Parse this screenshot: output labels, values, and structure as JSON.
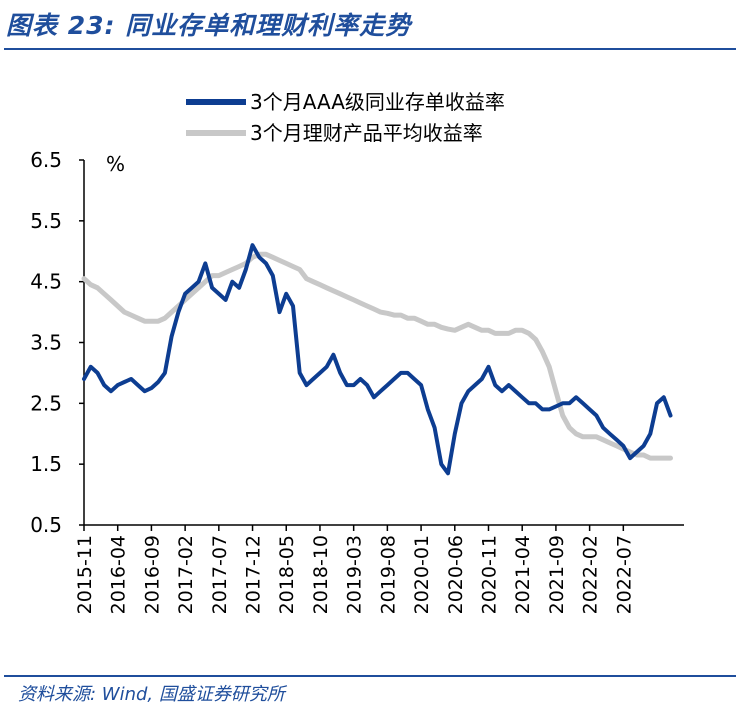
{
  "header": {
    "title": "图表 23: 同业存单和理财利率走势"
  },
  "footer": {
    "source": "资料来源: Wind, 国盛证券研究所"
  },
  "colors": {
    "accent": "#1f4e9c",
    "series_blue": "#0d3d91",
    "series_gray": "#c8c8c8"
  },
  "chart_data": {
    "type": "line",
    "unit": "%",
    "ylim": [
      0.5,
      6.5
    ],
    "yticks": [
      "6.5",
      "5.5",
      "4.5",
      "3.5",
      "2.5",
      "1.5",
      "0.5"
    ],
    "ytick_values": [
      6.5,
      5.5,
      4.5,
      3.5,
      2.5,
      1.5,
      0.5
    ],
    "xlim": [
      "2015-11",
      "2023-04"
    ],
    "xticks": [
      "2015-11",
      "2016-04",
      "2016-09",
      "2017-02",
      "2017-07",
      "2017-12",
      "2018-05",
      "2018-10",
      "2019-03",
      "2019-08",
      "2020-01",
      "2020-06",
      "2020-11",
      "2021-04",
      "2021-09",
      "2022-02",
      "2022-07"
    ],
    "legend_position": "top",
    "grid": false,
    "series": [
      {
        "name": "3个月AAA级同业存单收益率",
        "color": "#0d3d91",
        "points": [
          [
            "2015-11",
            2.9
          ],
          [
            "2015-12",
            3.1
          ],
          [
            "2016-01",
            3.0
          ],
          [
            "2016-02",
            2.8
          ],
          [
            "2016-03",
            2.7
          ],
          [
            "2016-04",
            2.8
          ],
          [
            "2016-05",
            2.85
          ],
          [
            "2016-06",
            2.9
          ],
          [
            "2016-07",
            2.8
          ],
          [
            "2016-08",
            2.7
          ],
          [
            "2016-09",
            2.75
          ],
          [
            "2016-10",
            2.85
          ],
          [
            "2016-11",
            3.0
          ],
          [
            "2016-12",
            3.6
          ],
          [
            "2017-01",
            4.0
          ],
          [
            "2017-02",
            4.3
          ],
          [
            "2017-03",
            4.4
          ],
          [
            "2017-04",
            4.5
          ],
          [
            "2017-05",
            4.8
          ],
          [
            "2017-06",
            4.4
          ],
          [
            "2017-07",
            4.3
          ],
          [
            "2017-08",
            4.2
          ],
          [
            "2017-09",
            4.5
          ],
          [
            "2017-10",
            4.4
          ],
          [
            "2017-11",
            4.7
          ],
          [
            "2017-12",
            5.1
          ],
          [
            "2018-01",
            4.9
          ],
          [
            "2018-02",
            4.8
          ],
          [
            "2018-03",
            4.6
          ],
          [
            "2018-04",
            4.0
          ],
          [
            "2018-05",
            4.3
          ],
          [
            "2018-06",
            4.1
          ],
          [
            "2018-07",
            3.0
          ],
          [
            "2018-08",
            2.8
          ],
          [
            "2018-09",
            2.9
          ],
          [
            "2018-10",
            3.0
          ],
          [
            "2018-11",
            3.1
          ],
          [
            "2018-12",
            3.3
          ],
          [
            "2019-01",
            3.0
          ],
          [
            "2019-02",
            2.8
          ],
          [
            "2019-03",
            2.8
          ],
          [
            "2019-04",
            2.9
          ],
          [
            "2019-05",
            2.8
          ],
          [
            "2019-06",
            2.6
          ],
          [
            "2019-07",
            2.7
          ],
          [
            "2019-08",
            2.8
          ],
          [
            "2019-09",
            2.9
          ],
          [
            "2019-10",
            3.0
          ],
          [
            "2019-11",
            3.0
          ],
          [
            "2019-12",
            2.9
          ],
          [
            "2020-01",
            2.8
          ],
          [
            "2020-02",
            2.4
          ],
          [
            "2020-03",
            2.1
          ],
          [
            "2020-04",
            1.5
          ],
          [
            "2020-05",
            1.35
          ],
          [
            "2020-06",
            2.0
          ],
          [
            "2020-07",
            2.5
          ],
          [
            "2020-08",
            2.7
          ],
          [
            "2020-09",
            2.8
          ],
          [
            "2020-10",
            2.9
          ],
          [
            "2020-11",
            3.1
          ],
          [
            "2020-12",
            2.8
          ],
          [
            "2021-01",
            2.7
          ],
          [
            "2021-02",
            2.8
          ],
          [
            "2021-03",
            2.7
          ],
          [
            "2021-04",
            2.6
          ],
          [
            "2021-05",
            2.5
          ],
          [
            "2021-06",
            2.5
          ],
          [
            "2021-07",
            2.4
          ],
          [
            "2021-08",
            2.4
          ],
          [
            "2021-09",
            2.45
          ],
          [
            "2021-10",
            2.5
          ],
          [
            "2021-11",
            2.5
          ],
          [
            "2021-12",
            2.6
          ],
          [
            "2022-01",
            2.5
          ],
          [
            "2022-02",
            2.4
          ],
          [
            "2022-03",
            2.3
          ],
          [
            "2022-04",
            2.1
          ],
          [
            "2022-05",
            2.0
          ],
          [
            "2022-06",
            1.9
          ],
          [
            "2022-07",
            1.8
          ],
          [
            "2022-08",
            1.6
          ],
          [
            "2022-09",
            1.7
          ],
          [
            "2022-10",
            1.8
          ],
          [
            "2022-11",
            2.0
          ],
          [
            "2022-12",
            2.5
          ],
          [
            "2023-01",
            2.6
          ],
          [
            "2023-02",
            2.3
          ]
        ]
      },
      {
        "name": "3个月理财产品平均收益率",
        "color": "#c8c8c8",
        "points": [
          [
            "2015-11",
            4.55
          ],
          [
            "2015-12",
            4.45
          ],
          [
            "2016-01",
            4.4
          ],
          [
            "2016-02",
            4.3
          ],
          [
            "2016-03",
            4.2
          ],
          [
            "2016-04",
            4.1
          ],
          [
            "2016-05",
            4.0
          ],
          [
            "2016-06",
            3.95
          ],
          [
            "2016-07",
            3.9
          ],
          [
            "2016-08",
            3.85
          ],
          [
            "2016-09",
            3.85
          ],
          [
            "2016-10",
            3.85
          ],
          [
            "2016-11",
            3.9
          ],
          [
            "2016-12",
            4.0
          ],
          [
            "2017-01",
            4.1
          ],
          [
            "2017-02",
            4.2
          ],
          [
            "2017-03",
            4.3
          ],
          [
            "2017-04",
            4.4
          ],
          [
            "2017-05",
            4.5
          ],
          [
            "2017-06",
            4.6
          ],
          [
            "2017-07",
            4.6
          ],
          [
            "2017-08",
            4.65
          ],
          [
            "2017-09",
            4.7
          ],
          [
            "2017-10",
            4.75
          ],
          [
            "2017-11",
            4.8
          ],
          [
            "2017-12",
            4.9
          ],
          [
            "2018-01",
            4.95
          ],
          [
            "2018-02",
            4.95
          ],
          [
            "2018-03",
            4.9
          ],
          [
            "2018-04",
            4.85
          ],
          [
            "2018-05",
            4.8
          ],
          [
            "2018-06",
            4.75
          ],
          [
            "2018-07",
            4.7
          ],
          [
            "2018-08",
            4.55
          ],
          [
            "2018-09",
            4.5
          ],
          [
            "2018-10",
            4.45
          ],
          [
            "2018-11",
            4.4
          ],
          [
            "2018-12",
            4.35
          ],
          [
            "2019-01",
            4.3
          ],
          [
            "2019-02",
            4.25
          ],
          [
            "2019-03",
            4.2
          ],
          [
            "2019-04",
            4.15
          ],
          [
            "2019-05",
            4.1
          ],
          [
            "2019-06",
            4.05
          ],
          [
            "2019-07",
            4.0
          ],
          [
            "2019-08",
            3.98
          ],
          [
            "2019-09",
            3.95
          ],
          [
            "2019-10",
            3.95
          ],
          [
            "2019-11",
            3.9
          ],
          [
            "2019-12",
            3.9
          ],
          [
            "2020-01",
            3.85
          ],
          [
            "2020-02",
            3.8
          ],
          [
            "2020-03",
            3.8
          ],
          [
            "2020-04",
            3.75
          ],
          [
            "2020-05",
            3.72
          ],
          [
            "2020-06",
            3.7
          ],
          [
            "2020-07",
            3.75
          ],
          [
            "2020-08",
            3.8
          ],
          [
            "2020-09",
            3.75
          ],
          [
            "2020-10",
            3.7
          ],
          [
            "2020-11",
            3.7
          ],
          [
            "2020-12",
            3.65
          ],
          [
            "2021-01",
            3.65
          ],
          [
            "2021-02",
            3.65
          ],
          [
            "2021-03",
            3.7
          ],
          [
            "2021-04",
            3.7
          ],
          [
            "2021-05",
            3.65
          ],
          [
            "2021-06",
            3.55
          ],
          [
            "2021-07",
            3.35
          ],
          [
            "2021-08",
            3.1
          ],
          [
            "2021-09",
            2.7
          ],
          [
            "2021-10",
            2.3
          ],
          [
            "2021-11",
            2.1
          ],
          [
            "2021-12",
            2.0
          ],
          [
            "2022-01",
            1.95
          ],
          [
            "2022-02",
            1.95
          ],
          [
            "2022-03",
            1.95
          ],
          [
            "2022-04",
            1.9
          ],
          [
            "2022-05",
            1.85
          ],
          [
            "2022-06",
            1.8
          ],
          [
            "2022-07",
            1.75
          ],
          [
            "2022-08",
            1.7
          ],
          [
            "2022-09",
            1.65
          ],
          [
            "2022-10",
            1.65
          ],
          [
            "2022-11",
            1.6
          ],
          [
            "2022-12",
            1.6
          ],
          [
            "2023-01",
            1.6
          ],
          [
            "2023-02",
            1.6
          ]
        ]
      }
    ]
  }
}
